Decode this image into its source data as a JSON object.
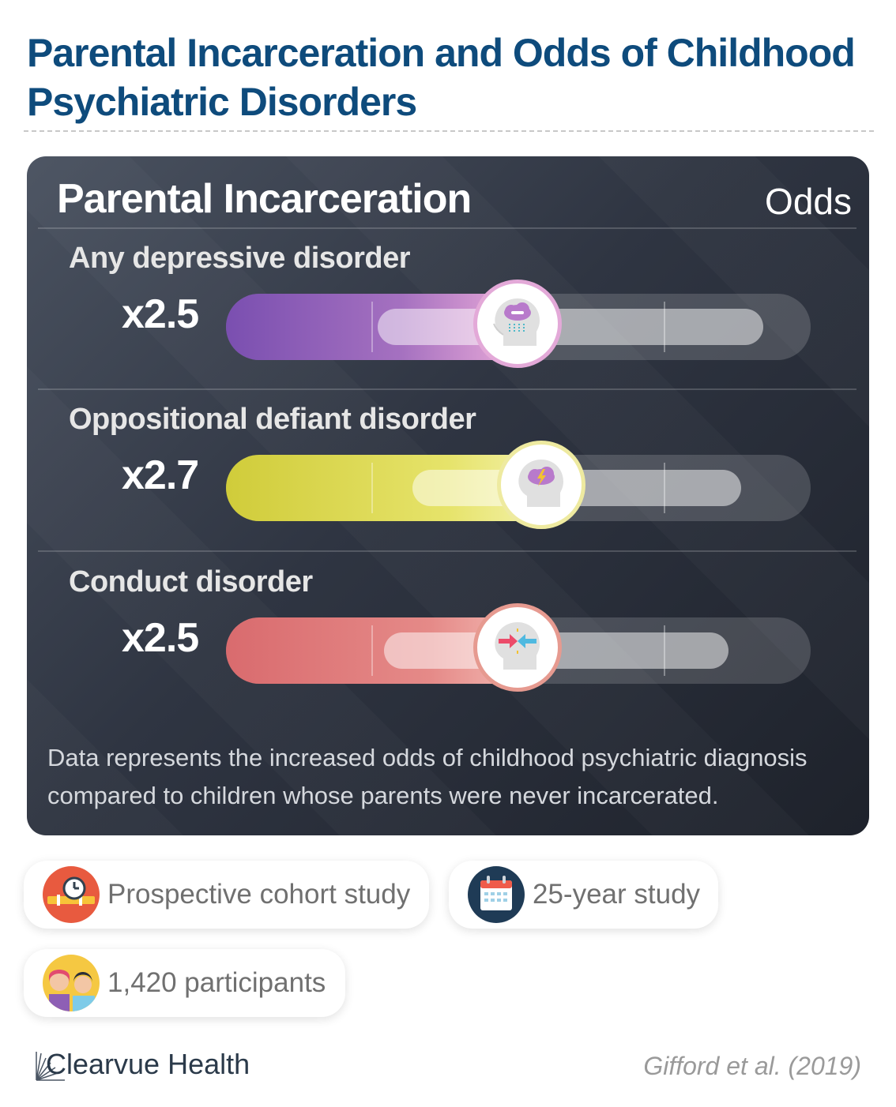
{
  "title": "Parental Incarceration and Odds of Childhood Psychiatric Disorders",
  "panel": {
    "heading": "Parental Incarceration",
    "column_label": "Odds",
    "rows": [
      {
        "label": "Any depressive disorder",
        "value_text": "x2.5",
        "value": 2.5,
        "color": "#8a5ab8",
        "icon": "head-rain-cloud-icon"
      },
      {
        "label": "Oppositional defiant disorder",
        "value_text": "x2.7",
        "value": 2.7,
        "color": "#d9d94a",
        "icon": "head-storm-cloud-icon"
      },
      {
        "label": "Conduct disorder",
        "value_text": "x2.5",
        "value": 2.5,
        "color": "#e07878",
        "icon": "head-conflict-arrows-icon"
      }
    ],
    "note": "Data represents the increased odds of childhood psychiatric diagnosis compared to children whose parents were never incarcerated."
  },
  "chips": [
    {
      "text": "Prospective cohort study",
      "icon": "timeline-clock-icon"
    },
    {
      "text": "25-year study",
      "icon": "calendar-icon"
    },
    {
      "text": "1,420 participants",
      "icon": "people-icon"
    }
  ],
  "footer": {
    "brand": "Clearvue Health",
    "citation": "Gifford et al. (2019)"
  }
}
